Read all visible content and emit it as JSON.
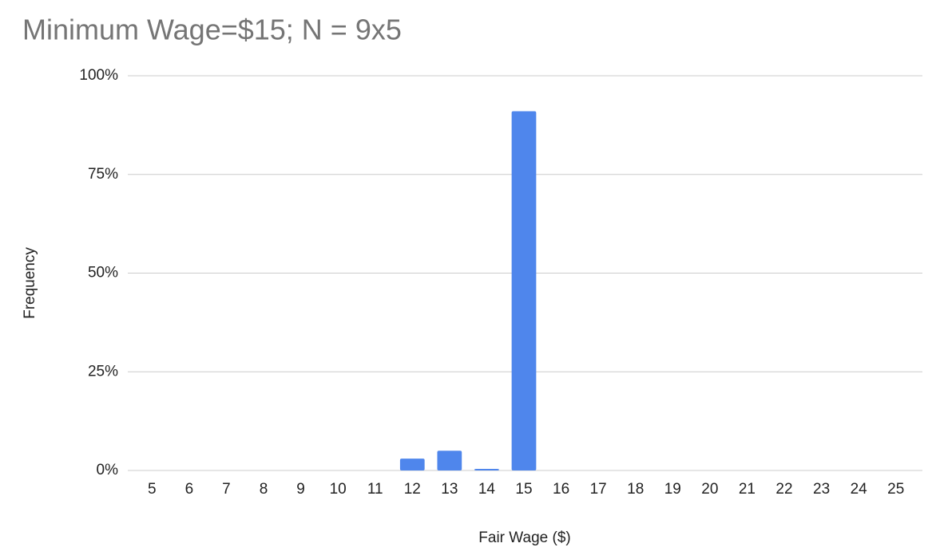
{
  "chart_data": {
    "type": "bar",
    "title": "Minimum Wage=$15; N = 9x5",
    "x_label": "Fair Wage ($)",
    "y_label": "Frequency",
    "categories": [
      "5",
      "6",
      "7",
      "8",
      "9",
      "10",
      "11",
      "12",
      "13",
      "14",
      "15",
      "16",
      "17",
      "18",
      "19",
      "20",
      "21",
      "22",
      "23",
      "24",
      "25"
    ],
    "values": [
      0,
      0,
      0,
      0,
      0,
      0,
      0,
      3,
      5,
      0.4,
      91,
      0,
      0,
      0,
      0,
      0,
      0,
      0,
      0,
      0,
      0
    ],
    "color": "#4f86ec",
    "ylim": [
      0,
      100
    ],
    "yticks": [
      {
        "value": 0,
        "label": "0%"
      },
      {
        "value": 25,
        "label": "25%"
      },
      {
        "value": 50,
        "label": "50%"
      },
      {
        "value": 75,
        "label": "75%"
      },
      {
        "value": 100,
        "label": "100%"
      }
    ],
    "grid": true
  }
}
